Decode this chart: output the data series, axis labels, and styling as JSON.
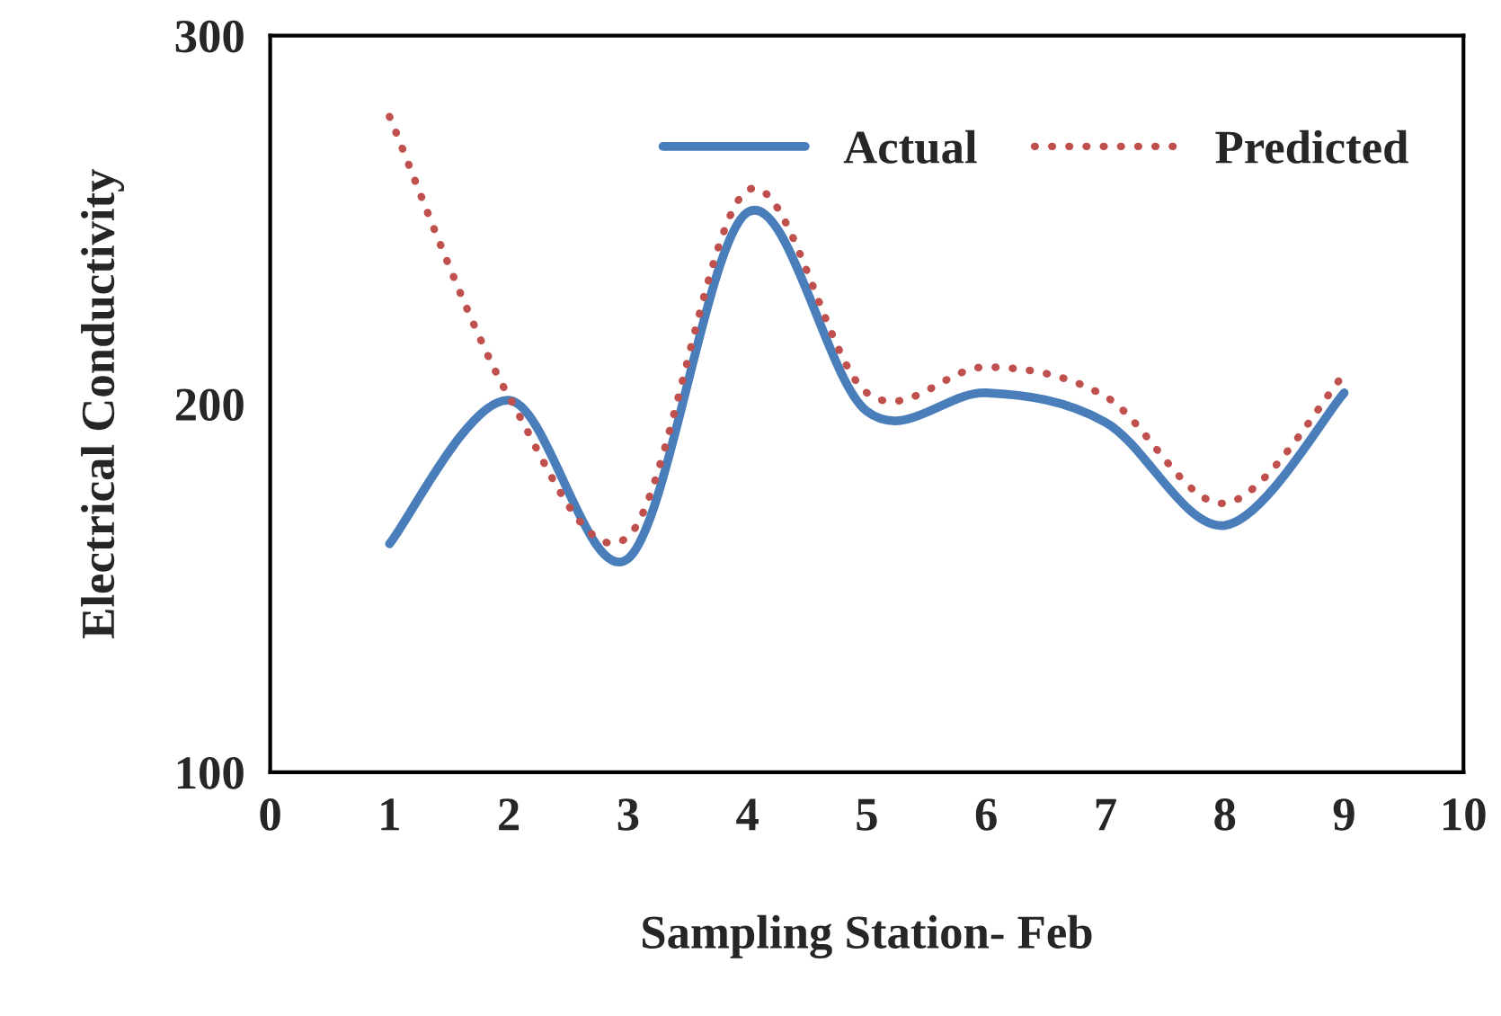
{
  "chart_data": {
    "type": "line",
    "xlabel": "Sampling Station- Feb",
    "ylabel": "Electrical Conductivity",
    "x": [
      1,
      2,
      3,
      4,
      5,
      6,
      7,
      8,
      9
    ],
    "series": [
      {
        "name": "Actual",
        "color": "#4a7ebb",
        "line_style": "solid",
        "values": [
          162,
          201,
          158,
          252,
          198,
          203,
          195,
          167,
          203
        ]
      },
      {
        "name": "Predicted",
        "color": "#c0504d",
        "line_style": "dotted",
        "values": [
          278,
          202,
          164,
          258,
          203,
          210,
          202,
          173,
          208
        ]
      }
    ],
    "xlim": [
      0,
      10
    ],
    "xticks": [
      0,
      1,
      2,
      3,
      4,
      5,
      6,
      7,
      8,
      9,
      10
    ],
    "ylim": [
      100,
      300
    ],
    "yticks": [
      100,
      200,
      300
    ],
    "grid": false,
    "legend": "top right",
    "marker": "none"
  }
}
